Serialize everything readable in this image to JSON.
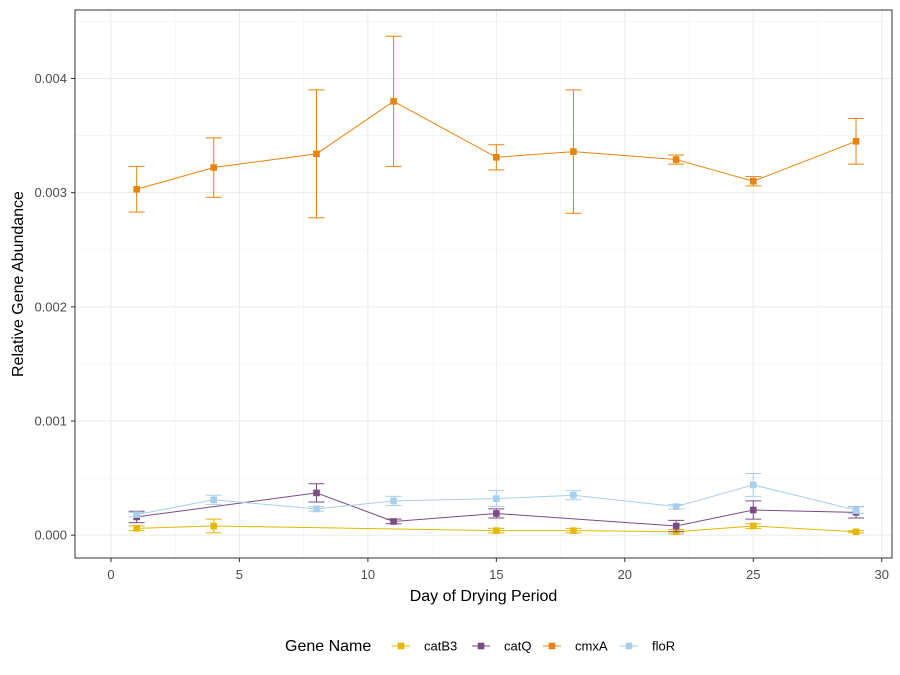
{
  "chart_data": {
    "type": "line",
    "title": "",
    "xlabel": "Day of Drying Period",
    "ylabel": "Relative Gene Abundance",
    "xlim": [
      -1.4,
      30.4
    ],
    "ylim": [
      -0.0002,
      0.0046
    ],
    "xticks": [
      0,
      5,
      10,
      15,
      20,
      25,
      30
    ],
    "xtick_labels": [
      "0",
      "5",
      "10",
      "15",
      "20",
      "25",
      "30"
    ],
    "yticks": [
      0,
      0.001,
      0.002,
      0.003,
      0.004
    ],
    "ytick_labels": [
      "0.000",
      "0.001",
      "0.002",
      "0.003",
      "0.004"
    ],
    "grid": true,
    "legend": {
      "title": "Gene Name",
      "placement": "bottom"
    },
    "series": [
      {
        "name": "catB3",
        "color": "#E6B800",
        "points": [
          {
            "x": 1,
            "y": 6e-05,
            "err": 2e-05
          },
          {
            "x": 4,
            "y": 8e-05,
            "err": 6e-05
          },
          {
            "x": 18,
            "y": 4e-05,
            "err": 2e-05
          },
          {
            "x": 15,
            "y": 4e-05,
            "err": 2e-05
          },
          {
            "x": 22,
            "y": 3e-05,
            "err": 2e-05
          },
          {
            "x": 25,
            "y": 8e-05,
            "err": 2e-05
          },
          {
            "x": 29,
            "y": 3e-05,
            "err": 1e-05
          }
        ]
      },
      {
        "name": "catQ",
        "color": "#7B4B85",
        "points": [
          {
            "x": 1,
            "y": 0.00016,
            "err": 5e-05
          },
          {
            "x": 8,
            "y": 0.00037,
            "err": 8e-05
          },
          {
            "x": 11,
            "y": 0.00012,
            "err": 2e-05
          },
          {
            "x": 15,
            "y": 0.00019,
            "err": 4e-05
          },
          {
            "x": 22,
            "y": 8e-05,
            "err": 5e-05
          },
          {
            "x": 25,
            "y": 0.00022,
            "err": 8e-05
          },
          {
            "x": 29,
            "y": 0.0002,
            "err": 5e-05
          }
        ]
      },
      {
        "name": "cmxA",
        "color": "#E8830C",
        "points": [
          {
            "x": 1,
            "y": 0.00303,
            "err": 0.0002
          },
          {
            "x": 4,
            "y": 0.00322,
            "err": 0.00026
          },
          {
            "x": 8,
            "y": 0.00334,
            "err": 0.00056
          },
          {
            "x": 11,
            "y": 0.0038,
            "err": 0.00057
          },
          {
            "x": 15,
            "y": 0.00331,
            "err": 0.00011
          },
          {
            "x": 18,
            "y": 0.00336,
            "err": 0.00054
          },
          {
            "x": 22,
            "y": 0.00329,
            "err": 4e-05
          },
          {
            "x": 25,
            "y": 0.0031,
            "err": 4e-05
          },
          {
            "x": 29,
            "y": 0.00345,
            "err": 0.0002
          }
        ]
      },
      {
        "name": "floR",
        "color": "#A8CFEB",
        "points": [
          {
            "x": 1,
            "y": 0.00018,
            "err": 2e-05
          },
          {
            "x": 4,
            "y": 0.00031,
            "err": 4e-05
          },
          {
            "x": 8,
            "y": 0.00023,
            "err": 2e-05
          },
          {
            "x": 11,
            "y": 0.0003,
            "err": 4e-05
          },
          {
            "x": 15,
            "y": 0.00032,
            "err": 7e-05
          },
          {
            "x": 18,
            "y": 0.00035,
            "err": 4e-05
          },
          {
            "x": 22,
            "y": 0.00025,
            "err": 2e-05
          },
          {
            "x": 25,
            "y": 0.00044,
            "err": 0.0001
          },
          {
            "x": 29,
            "y": 0.00022,
            "err": 3e-05
          }
        ]
      }
    ]
  }
}
